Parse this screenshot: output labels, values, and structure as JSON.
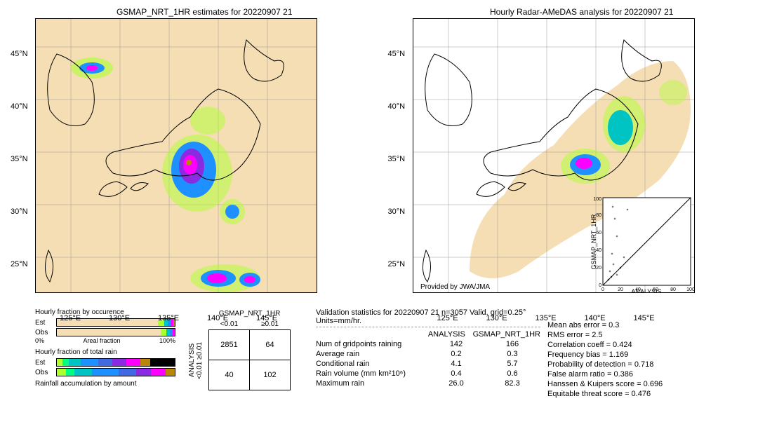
{
  "map_left": {
    "title": "GSMAP_NRT_1HR estimates for 20220907 21",
    "xticks": [
      "125°E",
      "130°E",
      "135°E",
      "140°E",
      "145°E"
    ],
    "yticks": [
      "25°N",
      "30°N",
      "35°N",
      "40°N",
      "45°N"
    ]
  },
  "map_right": {
    "title": "Hourly Radar-AMeDAS analysis for 20220907 21",
    "xticks": [
      "125°E",
      "130°E",
      "135°E",
      "140°E",
      "145°E"
    ],
    "yticks": [
      "25°N",
      "30°N",
      "35°N",
      "40°N",
      "45°N"
    ],
    "attribution": "Provided by JWA/JMA"
  },
  "colorbar": {
    "breaks": [
      0,
      0.01,
      0.5,
      1,
      2,
      3,
      4,
      10,
      25,
      50
    ],
    "colors": [
      "#f5deb3",
      "#f5e6c0",
      "#adff2f",
      "#00ff7f",
      "#00c4c4",
      "#1e90ff",
      "#4169e1",
      "#8a2be2",
      "#ff00ff",
      "#b8860b"
    ],
    "arrow_color": "#000000"
  },
  "scatter_inset": {
    "xlabel": "ANALYSIS",
    "ylabel": "GSMAP_NRT_1HR",
    "xlim": [
      0,
      100
    ],
    "ylim": [
      0,
      100
    ],
    "ticks": [
      0,
      20,
      40,
      60,
      80,
      100
    ]
  },
  "fractions": {
    "occurrence_title": "Hourly fraction by occurence",
    "total_rain_title": "Hourly fraction of total rain",
    "accum_title": "Rainfall accumulation by amount",
    "est_label": "Est",
    "obs_label": "Obs",
    "areal_left": "0%",
    "areal_right": "100%",
    "areal_label": "Areal fraction"
  },
  "contingency": {
    "col_header": "GSMAP_NRT_1HR",
    "row_header": "ANALYSIS",
    "lt": "<0.01",
    "ge": "≥0.01",
    "cells": [
      [
        "2851",
        "64"
      ],
      [
        "40",
        "102"
      ]
    ]
  },
  "summary": {
    "title": "Validation statistics for 20220907 21  n=3057 Valid. grid=0.25°  Units=mm/hr.",
    "col1": "ANALYSIS",
    "col2": "GSMAP_NRT_1HR",
    "rows": [
      {
        "metric": "Num of gridpoints raining",
        "a": "142",
        "b": "166"
      },
      {
        "metric": "Average rain",
        "a": "0.2",
        "b": "0.3"
      },
      {
        "metric": "Conditional rain",
        "a": "4.1",
        "b": "5.7"
      },
      {
        "metric": "Rain volume (mm km²10⁶)",
        "a": "0.4",
        "b": "0.6"
      },
      {
        "metric": "Maximum rain",
        "a": "26.0",
        "b": "82.3"
      }
    ]
  },
  "stats": [
    {
      "k": "Mean abs error =",
      "v": "0.3"
    },
    {
      "k": "RMS error =",
      "v": "2.5"
    },
    {
      "k": "Correlation coeff =",
      "v": "0.424"
    },
    {
      "k": "Frequency bias =",
      "v": "1.169"
    },
    {
      "k": "Probability of detection =",
      "v": "0.718"
    },
    {
      "k": "False alarm ratio =",
      "v": "0.386"
    },
    {
      "k": "Hanssen & Kuipers score =",
      "v": "0.696"
    },
    {
      "k": "Equitable threat score =",
      "v": "0.476"
    }
  ]
}
